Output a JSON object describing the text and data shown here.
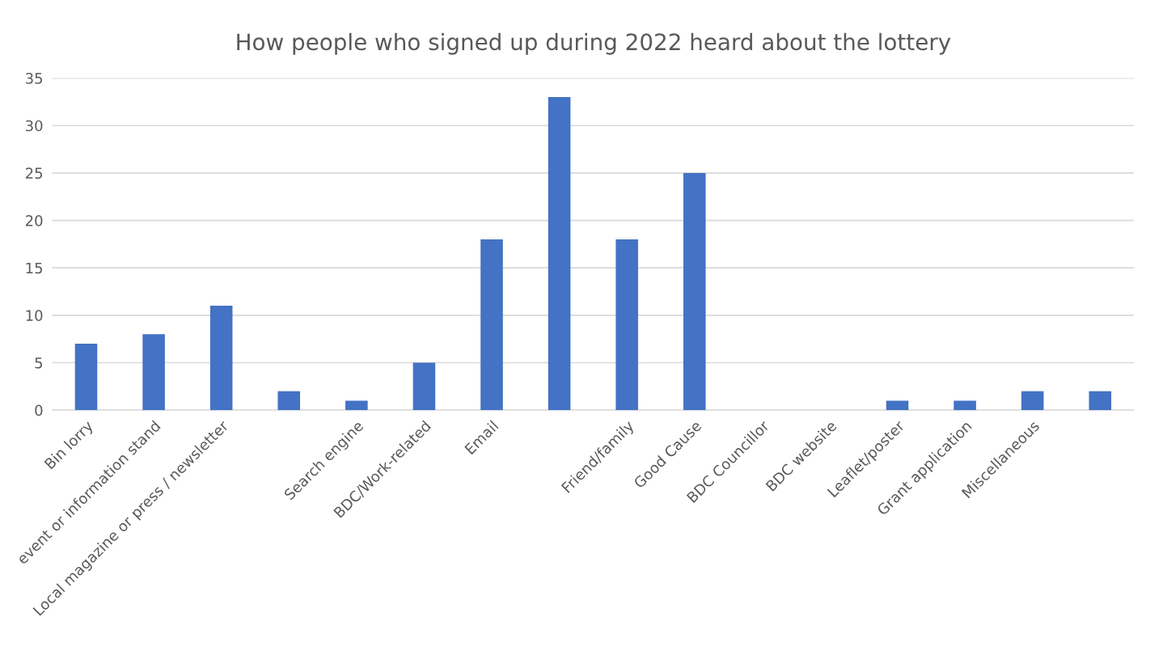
{
  "chart_data": {
    "type": "bar",
    "title": "How people who signed up during 2022 heard about the lottery",
    "categories": [
      "Bin lorry",
      "event or information stand",
      "Local magazine or press / newsletter",
      null,
      "Search engine",
      "BDC/Work-related",
      "Email",
      null,
      "Friend/family",
      "Good Cause",
      "BDC Councillor",
      "BDC website",
      "Leaflet/poster",
      "Grant application",
      "Miscellaneous",
      null
    ],
    "values": [
      7,
      8,
      11,
      2,
      1,
      5,
      18,
      33,
      18,
      25,
      0,
      0,
      1,
      1,
      2,
      2
    ],
    "color": "#4472c4",
    "ylim": [
      0,
      35
    ],
    "yticks": [
      0,
      5,
      10,
      15,
      20,
      25,
      30,
      35
    ],
    "grid": "y",
    "legend": false
  }
}
